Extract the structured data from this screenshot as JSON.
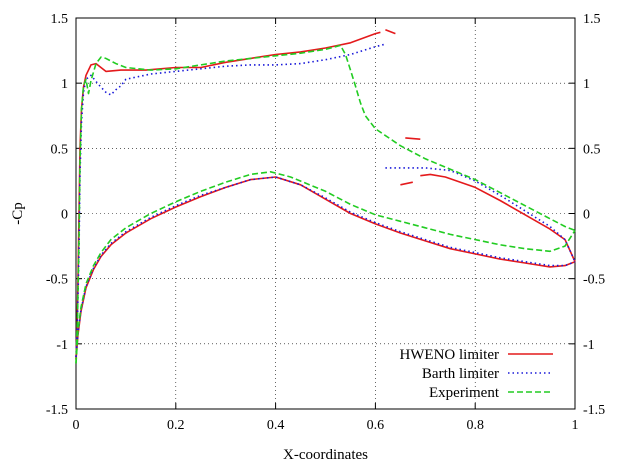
{
  "chart_data": {
    "type": "line",
    "title": "",
    "xlabel": "X-coordinates",
    "ylabel": "-Cp",
    "xlim": [
      0,
      1
    ],
    "ylim": [
      -1.5,
      1.5
    ],
    "grid": true,
    "legend_position": "bottom-right",
    "x_ticks": [
      {
        "value": 0,
        "label": "0"
      },
      {
        "value": 0.2,
        "label": "0.2"
      },
      {
        "value": 0.4,
        "label": "0.4"
      },
      {
        "value": 0.6,
        "label": "0.6"
      },
      {
        "value": 0.8,
        "label": "0.8"
      },
      {
        "value": 1,
        "label": "1"
      }
    ],
    "y_ticks": [
      {
        "value": -1.5,
        "label": "-1.5"
      },
      {
        "value": -1,
        "label": "-1"
      },
      {
        "value": -0.5,
        "label": "-0.5"
      },
      {
        "value": 0,
        "label": "0"
      },
      {
        "value": 0.5,
        "label": "0.5"
      },
      {
        "value": 1,
        "label": "1"
      },
      {
        "value": 1.5,
        "label": "1.5"
      }
    ],
    "series": [
      {
        "name": "HWENO limiter",
        "color": "#e41a1c",
        "style": "solid",
        "segments": [
          [
            [
              0.0,
              -1.12
            ],
            [
              0.002,
              -0.9
            ],
            [
              0.004,
              -0.5
            ],
            [
              0.006,
              0.0
            ],
            [
              0.008,
              0.5
            ],
            [
              0.011,
              0.8
            ],
            [
              0.015,
              0.97
            ],
            [
              0.02,
              1.06
            ],
            [
              0.03,
              1.14
            ],
            [
              0.04,
              1.15
            ],
            [
              0.06,
              1.09
            ],
            [
              0.09,
              1.1
            ],
            [
              0.14,
              1.1
            ],
            [
              0.2,
              1.12
            ],
            [
              0.25,
              1.12
            ],
            [
              0.3,
              1.16
            ],
            [
              0.35,
              1.19
            ],
            [
              0.4,
              1.22
            ],
            [
              0.45,
              1.24
            ],
            [
              0.5,
              1.27
            ],
            [
              0.55,
              1.31
            ],
            [
              0.6,
              1.38
            ],
            [
              0.61,
              1.39
            ]
          ],
          [
            [
              0.62,
              1.41
            ],
            [
              0.64,
              1.38
            ]
          ],
          [
            [
              0.66,
              0.58
            ],
            [
              0.69,
              0.57
            ]
          ],
          [
            [
              0.65,
              0.22
            ],
            [
              0.675,
              0.24
            ]
          ],
          [
            [
              0.69,
              0.29
            ],
            [
              0.71,
              0.3
            ],
            [
              0.74,
              0.28
            ],
            [
              0.8,
              0.2
            ],
            [
              0.85,
              0.1
            ],
            [
              0.9,
              -0.01
            ],
            [
              0.95,
              -0.12
            ],
            [
              0.98,
              -0.2
            ],
            [
              1.0,
              -0.37
            ]
          ],
          [
            [
              0.0,
              -1.12
            ],
            [
              0.004,
              -0.93
            ],
            [
              0.01,
              -0.75
            ],
            [
              0.02,
              -0.57
            ],
            [
              0.035,
              -0.43
            ],
            [
              0.05,
              -0.33
            ],
            [
              0.07,
              -0.24
            ],
            [
              0.1,
              -0.15
            ],
            [
              0.15,
              -0.04
            ],
            [
              0.2,
              0.05
            ],
            [
              0.25,
              0.13
            ],
            [
              0.3,
              0.2
            ],
            [
              0.35,
              0.26
            ],
            [
              0.4,
              0.28
            ],
            [
              0.45,
              0.22
            ],
            [
              0.5,
              0.11
            ],
            [
              0.55,
              0.0
            ],
            [
              0.6,
              -0.08
            ],
            [
              0.65,
              -0.15
            ],
            [
              0.7,
              -0.21
            ],
            [
              0.75,
              -0.27
            ],
            [
              0.8,
              -0.31
            ],
            [
              0.85,
              -0.35
            ],
            [
              0.9,
              -0.38
            ],
            [
              0.95,
              -0.41
            ],
            [
              0.98,
              -0.4
            ],
            [
              1.0,
              -0.37
            ]
          ]
        ]
      },
      {
        "name": "Barth limiter",
        "color": "#1a1ad9",
        "style": "dotted",
        "segments": [
          [
            [
              0.0,
              -1.1
            ],
            [
              0.003,
              -0.8
            ],
            [
              0.006,
              -0.3
            ],
            [
              0.008,
              0.3
            ],
            [
              0.011,
              0.7
            ],
            [
              0.015,
              0.93
            ],
            [
              0.02,
              1.03
            ],
            [
              0.03,
              1.06
            ],
            [
              0.045,
              0.99
            ],
            [
              0.06,
              0.93
            ],
            [
              0.07,
              0.91
            ],
            [
              0.08,
              0.95
            ],
            [
              0.09,
              0.98
            ],
            [
              0.1,
              1.03
            ],
            [
              0.15,
              1.07
            ],
            [
              0.2,
              1.09
            ],
            [
              0.25,
              1.11
            ],
            [
              0.3,
              1.13
            ],
            [
              0.35,
              1.14
            ],
            [
              0.4,
              1.14
            ],
            [
              0.45,
              1.15
            ],
            [
              0.5,
              1.18
            ],
            [
              0.55,
              1.22
            ],
            [
              0.6,
              1.28
            ],
            [
              0.62,
              1.3
            ]
          ],
          [
            [
              0.62,
              0.35
            ],
            [
              0.65,
              0.35
            ],
            [
              0.7,
              0.35
            ],
            [
              0.75,
              0.33
            ],
            [
              0.8,
              0.25
            ],
            [
              0.85,
              0.14
            ],
            [
              0.9,
              0.02
            ],
            [
              0.95,
              -0.1
            ],
            [
              0.98,
              -0.2
            ],
            [
              1.0,
              -0.37
            ]
          ],
          [
            [
              0.0,
              -1.1
            ],
            [
              0.004,
              -0.92
            ],
            [
              0.01,
              -0.74
            ],
            [
              0.02,
              -0.56
            ],
            [
              0.035,
              -0.42
            ],
            [
              0.05,
              -0.32
            ],
            [
              0.07,
              -0.23
            ],
            [
              0.1,
              -0.14
            ],
            [
              0.15,
              -0.03
            ],
            [
              0.2,
              0.06
            ],
            [
              0.25,
              0.14
            ],
            [
              0.3,
              0.2
            ],
            [
              0.35,
              0.26
            ],
            [
              0.4,
              0.28
            ],
            [
              0.45,
              0.22
            ],
            [
              0.5,
              0.12
            ],
            [
              0.55,
              0.01
            ],
            [
              0.6,
              -0.07
            ],
            [
              0.65,
              -0.14
            ],
            [
              0.7,
              -0.2
            ],
            [
              0.75,
              -0.26
            ],
            [
              0.8,
              -0.3
            ],
            [
              0.85,
              -0.34
            ],
            [
              0.9,
              -0.37
            ],
            [
              0.95,
              -0.4
            ],
            [
              0.98,
              -0.4
            ],
            [
              1.0,
              -0.37
            ]
          ]
        ]
      },
      {
        "name": "Experiment",
        "color": "#22cc22",
        "style": "dashed",
        "segments": [
          [
            [
              0.0,
              -1.15
            ],
            [
              0.003,
              -0.8
            ],
            [
              0.006,
              -0.2
            ],
            [
              0.008,
              0.4
            ],
            [
              0.011,
              0.8
            ],
            [
              0.015,
              0.98
            ],
            [
              0.02,
              1.03
            ],
            [
              0.025,
              0.92
            ],
            [
              0.03,
              1.02
            ],
            [
              0.04,
              1.15
            ],
            [
              0.05,
              1.2
            ],
            [
              0.06,
              1.19
            ],
            [
              0.08,
              1.15
            ],
            [
              0.1,
              1.12
            ],
            [
              0.15,
              1.1
            ],
            [
              0.2,
              1.11
            ],
            [
              0.25,
              1.14
            ],
            [
              0.3,
              1.17
            ],
            [
              0.35,
              1.19
            ],
            [
              0.4,
              1.21
            ],
            [
              0.45,
              1.23
            ],
            [
              0.5,
              1.26
            ],
            [
              0.53,
              1.29
            ],
            [
              0.54,
              1.22
            ],
            [
              0.55,
              1.1
            ],
            [
              0.56,
              0.98
            ],
            [
              0.57,
              0.85
            ],
            [
              0.58,
              0.75
            ],
            [
              0.6,
              0.65
            ],
            [
              0.65,
              0.52
            ],
            [
              0.7,
              0.42
            ],
            [
              0.75,
              0.34
            ],
            [
              0.8,
              0.26
            ],
            [
              0.85,
              0.16
            ],
            [
              0.9,
              0.06
            ],
            [
              0.95,
              -0.04
            ],
            [
              0.98,
              -0.1
            ],
            [
              1.0,
              -0.13
            ]
          ],
          [
            [
              0.0,
              -1.15
            ],
            [
              0.004,
              -0.9
            ],
            [
              0.01,
              -0.72
            ],
            [
              0.02,
              -0.54
            ],
            [
              0.035,
              -0.4
            ],
            [
              0.05,
              -0.3
            ],
            [
              0.07,
              -0.2
            ],
            [
              0.1,
              -0.11
            ],
            [
              0.15,
              0.0
            ],
            [
              0.2,
              0.09
            ],
            [
              0.25,
              0.17
            ],
            [
              0.3,
              0.24
            ],
            [
              0.35,
              0.3
            ],
            [
              0.39,
              0.32
            ],
            [
              0.43,
              0.28
            ],
            [
              0.5,
              0.17
            ],
            [
              0.55,
              0.07
            ],
            [
              0.6,
              -0.01
            ],
            [
              0.65,
              -0.06
            ],
            [
              0.7,
              -0.11
            ],
            [
              0.75,
              -0.16
            ],
            [
              0.8,
              -0.2
            ],
            [
              0.85,
              -0.24
            ],
            [
              0.9,
              -0.27
            ],
            [
              0.95,
              -0.29
            ],
            [
              0.98,
              -0.25
            ],
            [
              1.0,
              -0.13
            ]
          ]
        ]
      }
    ]
  }
}
